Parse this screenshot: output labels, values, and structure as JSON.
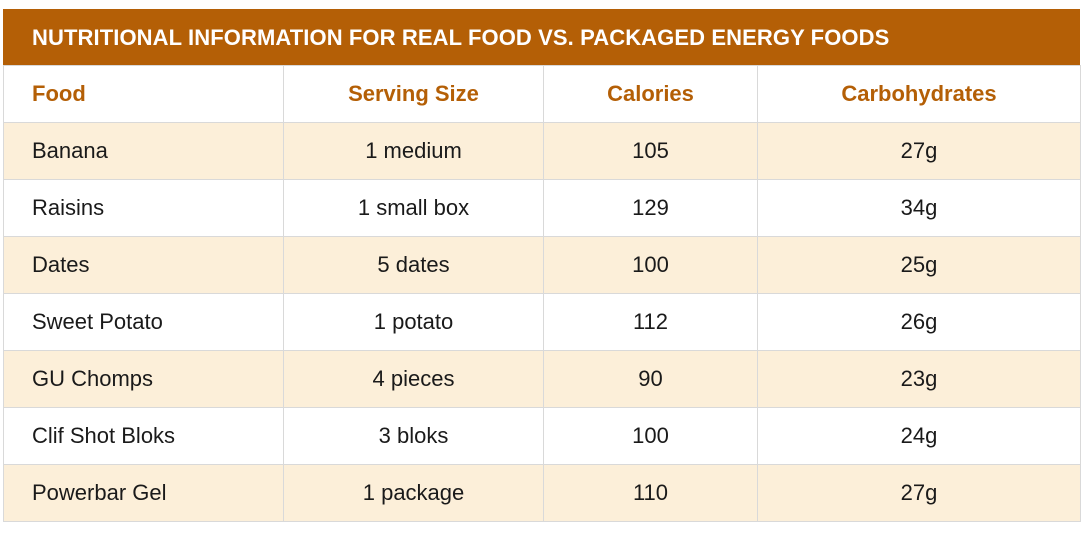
{
  "table": {
    "title": "NUTRITIONAL INFORMATION FOR REAL FOOD VS. PACKAGED ENERGY FOODS",
    "headers": [
      "Food",
      "Serving Size",
      "Calories",
      "Carbohydrates"
    ],
    "rows": [
      [
        "Banana",
        "1 medium",
        "105",
        "27g"
      ],
      [
        "Raisins",
        "1 small box",
        "129",
        "34g"
      ],
      [
        "Dates",
        "5 dates",
        "100",
        "25g"
      ],
      [
        "Sweet Potato",
        "1 potato",
        "112",
        "26g"
      ],
      [
        "GU Chomps",
        "4 pieces",
        "90",
        "23g"
      ],
      [
        "Clif Shot Bloks",
        "3 bloks",
        "100",
        "24g"
      ],
      [
        "Powerbar Gel",
        "1 package",
        "110",
        "27g"
      ]
    ]
  },
  "colors": {
    "accent": "#b45f06",
    "stripe": "#fcefd9",
    "border": "#d9d9d9"
  }
}
